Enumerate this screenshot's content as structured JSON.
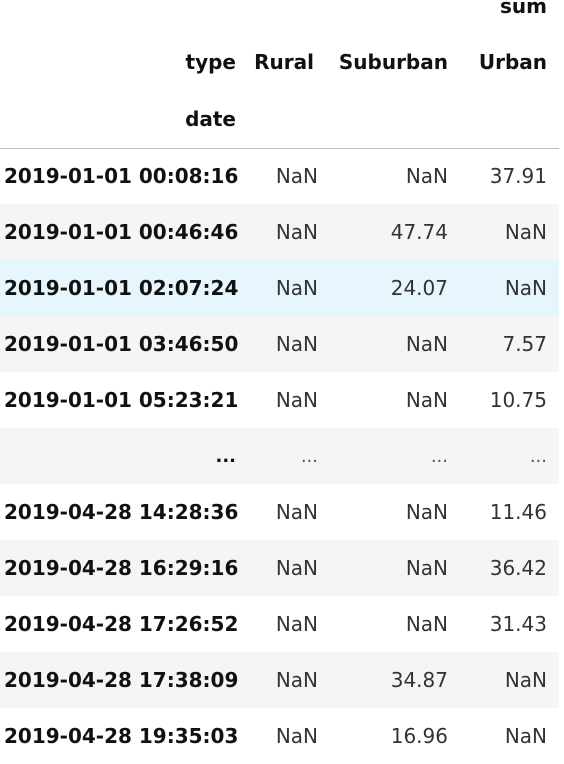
{
  "table": {
    "header": {
      "top_level": "sum",
      "columns_name": "type",
      "columns": [
        "Rural",
        "Suburban",
        "Urban"
      ],
      "index_name": "date"
    },
    "rows": [
      {
        "index": "2019-01-01 00:08:16",
        "rural": "NaN",
        "suburban": "NaN",
        "urban": "37.91"
      },
      {
        "index": "2019-01-01 00:46:46",
        "rural": "NaN",
        "suburban": "47.74",
        "urban": "NaN"
      },
      {
        "index": "2019-01-01 02:07:24",
        "rural": "NaN",
        "suburban": "24.07",
        "urban": "NaN"
      },
      {
        "index": "2019-01-01 03:46:50",
        "rural": "NaN",
        "suburban": "NaN",
        "urban": "7.57"
      },
      {
        "index": "2019-01-01 05:23:21",
        "rural": "NaN",
        "suburban": "NaN",
        "urban": "10.75"
      },
      {
        "index": "...",
        "rural": "...",
        "suburban": "...",
        "urban": "..."
      },
      {
        "index": "2019-04-28 14:28:36",
        "rural": "NaN",
        "suburban": "NaN",
        "urban": "11.46"
      },
      {
        "index": "2019-04-28 16:29:16",
        "rural": "NaN",
        "suburban": "NaN",
        "urban": "36.42"
      },
      {
        "index": "2019-04-28 17:26:52",
        "rural": "NaN",
        "suburban": "NaN",
        "urban": "31.43"
      },
      {
        "index": "2019-04-28 17:38:09",
        "rural": "NaN",
        "suburban": "34.87",
        "urban": "NaN"
      },
      {
        "index": "2019-04-28 19:35:03",
        "rural": "NaN",
        "suburban": "16.96",
        "urban": "NaN"
      }
    ]
  },
  "colors": {
    "striped_row": "#f5f5f5",
    "hover_row": "#e6f6fc",
    "header_rule": "#bdbdbd"
  }
}
